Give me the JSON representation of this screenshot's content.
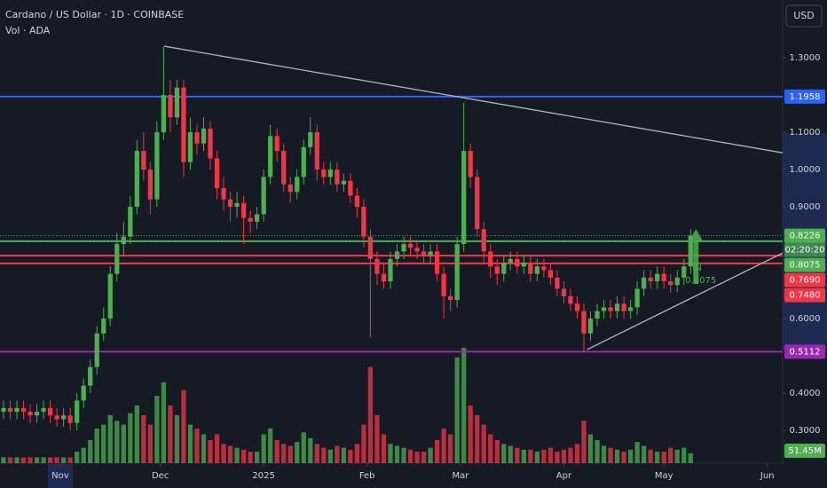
{
  "chart_data": {
    "type": "candlestick",
    "title": "Cardano / US Dollar · 1D · COINBASE",
    "subtitle": "Vol · ADA",
    "currency": "USD",
    "timer": "02:20:20",
    "annotation": "IN",
    "up_color": "#4caf50",
    "down_color": "#f23645",
    "ylim": [
      0.212,
      1.455
    ],
    "xlim": [
      -0.53,
      116.8
    ],
    "yticks": [
      {
        "value": 1.3,
        "label": "1.3000"
      },
      {
        "value": 1.1,
        "label": "1.1000"
      },
      {
        "value": 1.0,
        "label": "1.0000"
      },
      {
        "value": 0.9,
        "label": "0.9000"
      },
      {
        "value": 0.6,
        "label": "0.6000"
      },
      {
        "value": 0.4,
        "label": "0.4000"
      },
      {
        "value": 0.3,
        "label": "0.3000"
      }
    ],
    "xticks": [
      {
        "value": 8.5,
        "label": "Nov"
      },
      {
        "value": 23.5,
        "label": "Dec"
      },
      {
        "value": 39,
        "label": "2025"
      },
      {
        "value": 54.5,
        "label": "Feb"
      },
      {
        "value": 68.5,
        "label": "Mar"
      },
      {
        "value": 84,
        "label": "Apr"
      },
      {
        "value": 99,
        "label": "May"
      },
      {
        "value": 114.5,
        "label": "Jun"
      }
    ],
    "open": [
      0.35,
      0.36,
      0.35,
      0.36,
      0.35,
      0.34,
      0.35,
      0.36,
      0.34,
      0.33,
      0.34,
      0.32,
      0.38,
      0.42,
      0.47,
      0.56,
      0.6,
      0.72,
      0.8,
      0.82,
      0.9,
      1.05,
      1.0,
      0.92,
      1.1,
      1.2,
      1.14,
      1.22,
      1.02,
      1.1,
      1.07,
      1.11,
      1.03,
      0.95,
      0.92,
      0.9,
      0.91,
      0.87,
      0.86,
      0.88,
      0.98,
      1.09,
      1.05,
      0.96,
      0.94,
      0.98,
      1.06,
      1.1,
      1.0,
      0.98,
      1.0,
      0.96,
      0.97,
      0.93,
      0.9,
      0.82,
      0.76,
      0.72,
      0.7,
      0.76,
      0.78,
      0.8,
      0.79,
      0.78,
      0.77,
      0.78,
      0.72,
      0.66,
      0.65,
      0.8,
      1.05,
      0.98,
      0.84,
      0.78,
      0.74,
      0.72,
      0.75,
      0.76,
      0.74,
      0.75,
      0.72,
      0.74,
      0.73,
      0.71,
      0.68,
      0.66,
      0.64,
      0.62,
      0.56,
      0.6,
      0.62,
      0.63,
      0.62,
      0.64,
      0.62,
      0.63,
      0.68,
      0.71,
      0.7,
      0.72,
      0.7,
      0.69,
      0.71,
      0.74
    ],
    "high": [
      0.38,
      0.38,
      0.38,
      0.38,
      0.37,
      0.37,
      0.38,
      0.38,
      0.36,
      0.36,
      0.36,
      0.4,
      0.44,
      0.49,
      0.58,
      0.63,
      0.74,
      0.83,
      0.86,
      0.93,
      1.08,
      1.1,
      1.02,
      1.13,
      1.33,
      1.24,
      1.24,
      1.24,
      1.14,
      1.12,
      1.14,
      1.13,
      1.05,
      0.98,
      0.94,
      0.94,
      0.93,
      0.89,
      0.9,
      1.0,
      1.12,
      1.11,
      1.07,
      0.98,
      1.0,
      1.08,
      1.14,
      1.12,
      1.02,
      1.02,
      1.02,
      0.99,
      0.99,
      0.95,
      0.92,
      0.84,
      0.78,
      0.75,
      0.78,
      0.8,
      0.82,
      0.82,
      0.81,
      0.8,
      0.8,
      0.8,
      0.74,
      0.68,
      0.82,
      1.18,
      1.07,
      1.0,
      0.86,
      0.8,
      0.76,
      0.77,
      0.78,
      0.78,
      0.77,
      0.77,
      0.76,
      0.76,
      0.75,
      0.73,
      0.7,
      0.68,
      0.66,
      0.64,
      0.62,
      0.64,
      0.65,
      0.65,
      0.66,
      0.66,
      0.65,
      0.7,
      0.73,
      0.73,
      0.74,
      0.74,
      0.72,
      0.73,
      0.76,
      0.84
    ],
    "low": [
      0.33,
      0.33,
      0.33,
      0.33,
      0.32,
      0.32,
      0.33,
      0.32,
      0.31,
      0.31,
      0.3,
      0.3,
      0.36,
      0.4,
      0.45,
      0.54,
      0.58,
      0.7,
      0.77,
      0.8,
      0.88,
      0.97,
      0.88,
      0.9,
      1.08,
      1.1,
      1.12,
      0.98,
      1.0,
      1.04,
      1.05,
      1.0,
      0.92,
      0.89,
      0.86,
      0.87,
      0.8,
      0.83,
      0.84,
      0.86,
      0.96,
      1.02,
      0.94,
      0.91,
      0.92,
      0.96,
      1.04,
      0.97,
      0.96,
      0.96,
      0.94,
      0.94,
      0.91,
      0.87,
      0.79,
      0.55,
      0.69,
      0.68,
      0.68,
      0.74,
      0.76,
      0.77,
      0.76,
      0.75,
      0.75,
      0.7,
      0.6,
      0.62,
      0.63,
      0.78,
      0.95,
      0.82,
      0.75,
      0.71,
      0.69,
      0.7,
      0.73,
      0.72,
      0.72,
      0.7,
      0.7,
      0.71,
      0.69,
      0.66,
      0.64,
      0.62,
      0.6,
      0.51,
      0.54,
      0.58,
      0.6,
      0.6,
      0.6,
      0.6,
      0.6,
      0.61,
      0.66,
      0.68,
      0.68,
      0.68,
      0.67,
      0.67,
      0.69,
      0.72
    ],
    "close": [
      0.36,
      0.35,
      0.36,
      0.35,
      0.34,
      0.35,
      0.36,
      0.34,
      0.33,
      0.34,
      0.32,
      0.38,
      0.42,
      0.47,
      0.56,
      0.6,
      0.72,
      0.8,
      0.82,
      0.9,
      1.05,
      1.0,
      0.92,
      1.1,
      1.2,
      1.14,
      1.22,
      1.02,
      1.1,
      1.07,
      1.11,
      1.03,
      0.95,
      0.92,
      0.9,
      0.91,
      0.87,
      0.86,
      0.88,
      0.98,
      1.09,
      1.05,
      0.96,
      0.94,
      0.98,
      1.06,
      1.1,
      1.0,
      0.98,
      1.0,
      0.96,
      0.97,
      0.93,
      0.9,
      0.82,
      0.76,
      0.72,
      0.7,
      0.76,
      0.78,
      0.8,
      0.79,
      0.78,
      0.77,
      0.78,
      0.72,
      0.66,
      0.65,
      0.8,
      1.05,
      0.98,
      0.84,
      0.78,
      0.74,
      0.72,
      0.75,
      0.76,
      0.74,
      0.75,
      0.72,
      0.74,
      0.73,
      0.71,
      0.68,
      0.66,
      0.64,
      0.62,
      0.56,
      0.6,
      0.62,
      0.63,
      0.62,
      0.64,
      0.62,
      0.63,
      0.68,
      0.71,
      0.7,
      0.72,
      0.7,
      0.69,
      0.71,
      0.74,
      0.8226
    ],
    "volume": [
      30,
      30,
      30,
      30,
      30,
      30,
      30,
      30,
      30,
      30,
      30,
      60,
      80,
      120,
      180,
      200,
      250,
      220,
      200,
      260,
      300,
      250,
      200,
      350,
      420,
      300,
      250,
      380,
      200,
      180,
      150,
      120,
      150,
      100,
      90,
      80,
      70,
      60,
      60,
      150,
      180,
      120,
      100,
      90,
      110,
      160,
      130,
      100,
      80,
      70,
      90,
      80,
      70,
      100,
      200,
      500,
      250,
      150,
      100,
      90,
      80,
      70,
      60,
      60,
      80,
      120,
      180,
      150,
      550,
      600,
      300,
      250,
      200,
      150,
      120,
      100,
      90,
      80,
      70,
      70,
      60,
      70,
      80,
      60,
      70,
      80,
      100,
      220,
      150,
      120,
      90,
      80,
      70,
      60,
      70,
      110,
      90,
      70,
      60,
      60,
      80,
      70,
      80,
      51.45
    ],
    "volume_label": "51.45M",
    "levels": [
      {
        "value": 1.1958,
        "color": "#2962ff"
      },
      {
        "value": 0.8075,
        "color": "#4caf50"
      },
      {
        "value": 0.769,
        "label": "0.7690",
        "color": "#f23645"
      },
      {
        "value": 0.748,
        "label": "0.7480",
        "color": "#f23645"
      },
      {
        "value": 0.5112,
        "color": "#9c27b0"
      }
    ],
    "trendlines": [
      {
        "x": [
          24.1,
          116.8
        ],
        "y": [
          1.331,
          1.045
        ],
        "color": "#b2b5be"
      },
      {
        "x": [
          87.5,
          116.8
        ],
        "y": [
          0.517,
          0.776
        ],
        "color": "#b2b5be"
      }
    ]
  }
}
